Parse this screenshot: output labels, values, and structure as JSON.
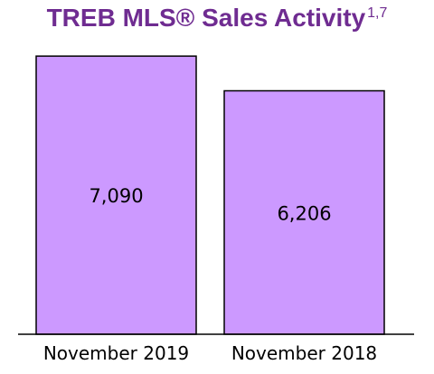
{
  "title": "TREB MLS® Sales Activity",
  "title_superscript": "1,7",
  "chart_data": {
    "type": "bar",
    "categories": [
      "November 2019",
      "November 2018"
    ],
    "values": [
      7090,
      6206
    ],
    "value_labels": [
      "7,090",
      "6,206"
    ],
    "bar_color": "#cc99ff",
    "bar_border_color": "#000000",
    "title_color": "#6f2c91",
    "ylim": [
      0,
      8000
    ],
    "grid": false,
    "legend": "none"
  }
}
